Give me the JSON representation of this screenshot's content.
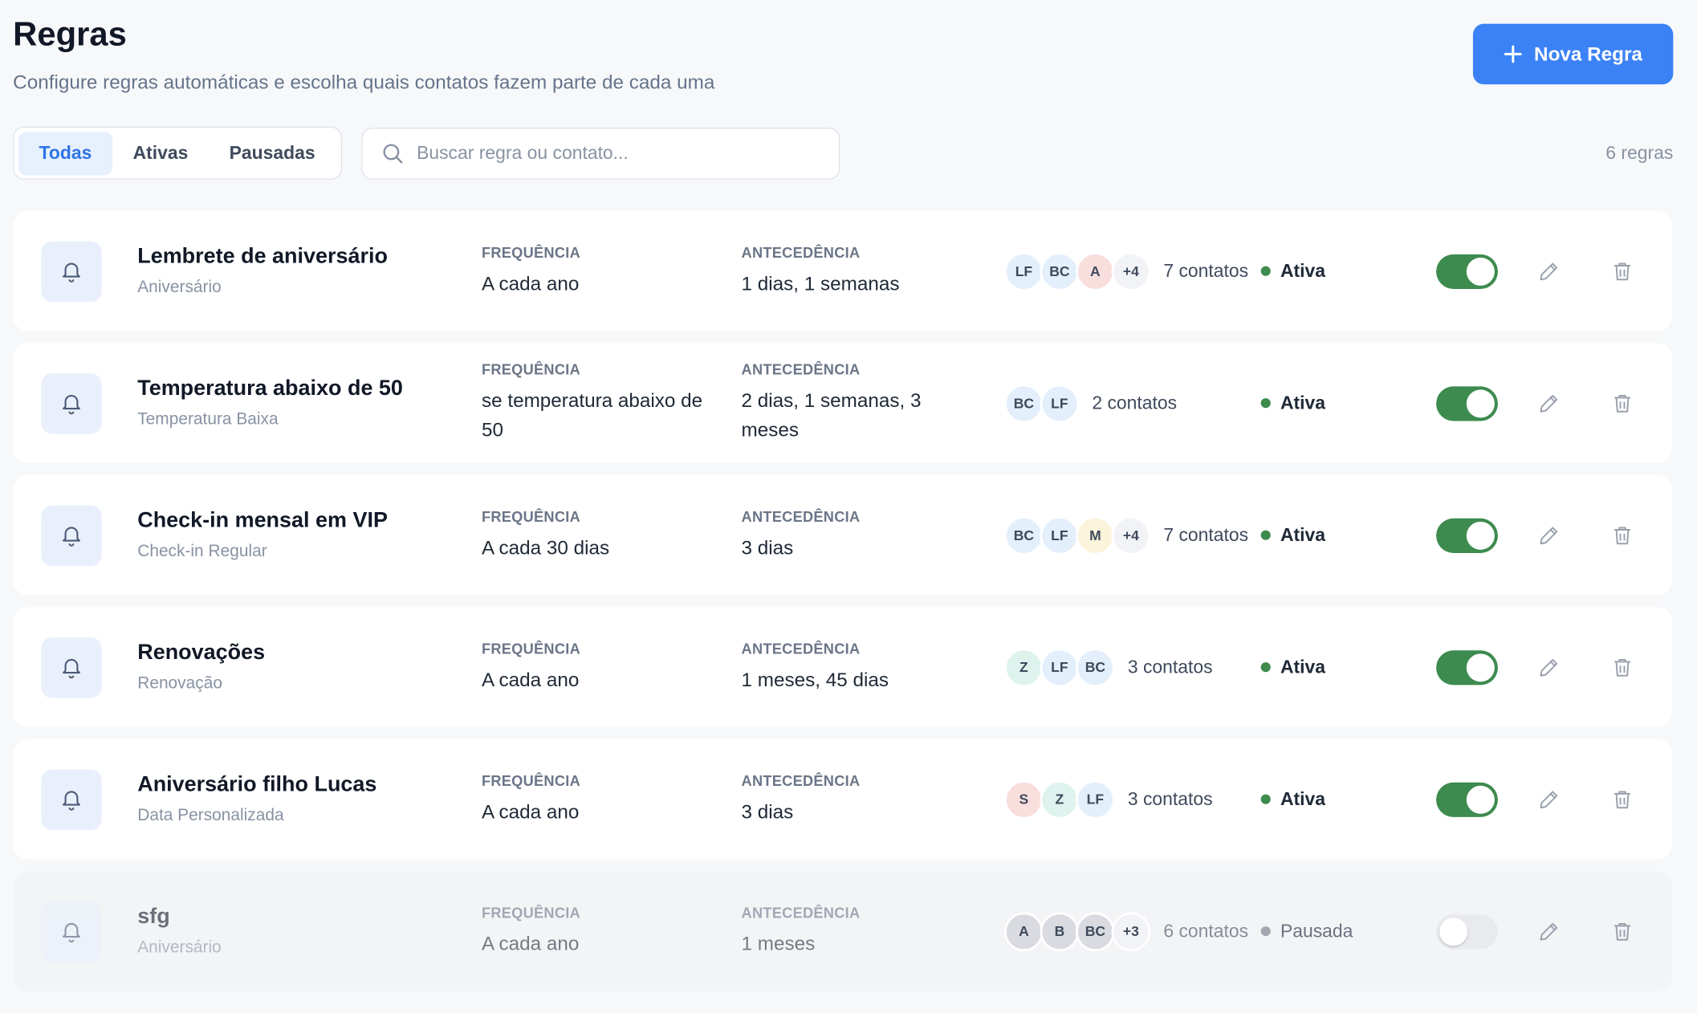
{
  "header": {
    "title": "Regras",
    "subtitle": "Configure regras automáticas e escolha quais contatos fazem parte de cada uma",
    "button": "Nova Regra"
  },
  "tabs": [
    "Todas",
    "Ativas",
    "Pausadas"
  ],
  "search_placeholder": "Buscar regra ou contato...",
  "count": "6 regras",
  "labels": {
    "frequency": "FREQUÊNCIA",
    "advance": "ANTECEDÊNCIA"
  },
  "rules": [
    {
      "name": "Lembrete de aniversário",
      "category": "Aniversário",
      "frequency": "A cada ano",
      "advance": "1 dias, 1 semanas",
      "avatars": [
        {
          "label": "LF",
          "color": "#e3effb"
        },
        {
          "label": "BC",
          "color": "#e3effb"
        },
        {
          "label": "A",
          "color": "#f9dede"
        },
        {
          "label": "+4",
          "color": "#f1f3f6"
        }
      ],
      "contacts": "7 contatos",
      "status": "Ativa",
      "enabled": true
    },
    {
      "name": "Temperatura abaixo de 50",
      "category": "Temperatura Baixa",
      "frequency": "se temperatura abaixo de 50",
      "advance": "2 dias, 1 semanas, 3 meses",
      "avatars": [
        {
          "label": "BC",
          "color": "#e3effb"
        },
        {
          "label": "LF",
          "color": "#e3effb"
        }
      ],
      "contacts": "2 contatos",
      "status": "Ativa",
      "enabled": true
    },
    {
      "name": "Check-in mensal em VIP",
      "category": "Check-in Regular",
      "frequency": "A cada 30 dias",
      "advance": "3 dias",
      "avatars": [
        {
          "label": "BC",
          "color": "#e3effb"
        },
        {
          "label": "LF",
          "color": "#e3effb"
        },
        {
          "label": "M",
          "color": "#fbf3da"
        },
        {
          "label": "+4",
          "color": "#f1f3f6"
        }
      ],
      "contacts": "7 contatos",
      "status": "Ativa",
      "enabled": true
    },
    {
      "name": "Renovações",
      "category": "Renovação",
      "frequency": "A cada ano",
      "advance": "1 meses, 45 dias",
      "avatars": [
        {
          "label": "Z",
          "color": "#dff3ee"
        },
        {
          "label": "LF",
          "color": "#e3effb"
        },
        {
          "label": "BC",
          "color": "#e3effb"
        }
      ],
      "contacts": "3 contatos",
      "status": "Ativa",
      "enabled": true
    },
    {
      "name": "Aniversário filho Lucas",
      "category": "Data Personalizada",
      "frequency": "A cada ano",
      "advance": "3 dias",
      "avatars": [
        {
          "label": "S",
          "color": "#f9dede"
        },
        {
          "label": "Z",
          "color": "#dff3ee"
        },
        {
          "label": "LF",
          "color": "#e3effb"
        }
      ],
      "contacts": "3 contatos",
      "status": "Ativa",
      "enabled": true
    },
    {
      "name": "sfg",
      "category": "Aniversário",
      "frequency": "A cada ano",
      "advance": "1 meses",
      "avatars": [
        {
          "label": "A",
          "color": "#d9dbe0"
        },
        {
          "label": "B",
          "color": "#d9dbe0"
        },
        {
          "label": "BC",
          "color": "#d9dbe0"
        },
        {
          "label": "+3",
          "color": "#f1f3f6"
        }
      ],
      "contacts": "6 contatos",
      "status": "Pausada",
      "enabled": false
    }
  ]
}
